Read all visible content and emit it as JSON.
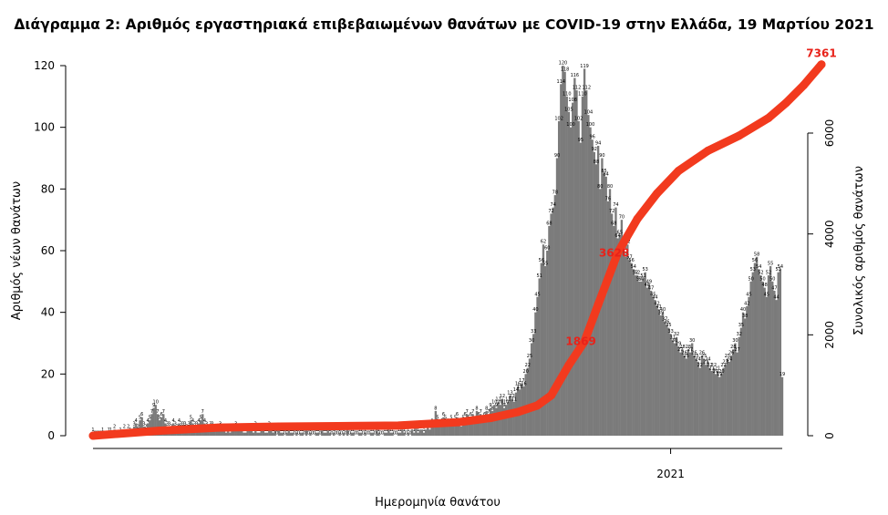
{
  "chart_data": {
    "type": "bar",
    "title": "Διάγραμμα 2: Αριθμός εργαστηριακά επιβεβαιωμένων θανάτων με COVID-19 στην Ελλάδα, 19 Μαρτίου 2021",
    "xlabel": "Ημερομηνία θανάτου",
    "ylabel": "Αριθμός νέων θανάτων",
    "y2label": "Συνολικός αριθμός θανάτων",
    "x_tick_labels": [
      "2021"
    ],
    "ylim": [
      0,
      120
    ],
    "y_ticks": [
      0,
      20,
      40,
      60,
      80,
      100,
      120
    ],
    "y2lim": [
      0,
      7361
    ],
    "y2_ticks": [
      0,
      2000,
      4000,
      6000
    ],
    "grid": false,
    "legend": "none",
    "colors": {
      "bars": "#7b7b7b",
      "cumulative_line": "#f23a1e",
      "cumulative_labels": "#e8221a"
    },
    "series": [
      {
        "name": "Αριθμός νέων θανάτων",
        "type": "bar",
        "x_start": "2020-03-12",
        "values": [
          1,
          0,
          0,
          0,
          0,
          1,
          0,
          0,
          1,
          1,
          0,
          2,
          0,
          0,
          1,
          0,
          2,
          0,
          2,
          1,
          0,
          3,
          4,
          2,
          5,
          6,
          3,
          2,
          4,
          5,
          7,
          9,
          10,
          7,
          5,
          6,
          7,
          4,
          3,
          3,
          2,
          4,
          3,
          2,
          4,
          3,
          3,
          3,
          2,
          3,
          5,
          4,
          3,
          3,
          4,
          5,
          7,
          4,
          3,
          2,
          3,
          3,
          2,
          2,
          2,
          3,
          2,
          2,
          1,
          2,
          1,
          2,
          2,
          3,
          2,
          2,
          2,
          1,
          1,
          2,
          2,
          2,
          1,
          3,
          1,
          1,
          2,
          2,
          1,
          1,
          3,
          2,
          1,
          2,
          0,
          2,
          1,
          1,
          0,
          1,
          2,
          1,
          1,
          0,
          1,
          0,
          1,
          1,
          0,
          2,
          0,
          1,
          0,
          0,
          1,
          1,
          0,
          2,
          1,
          1,
          2,
          1,
          0,
          1,
          0,
          0,
          1,
          0,
          1,
          0,
          2,
          0,
          1,
          1,
          0,
          0,
          1,
          1,
          0,
          1,
          0,
          0,
          1,
          1,
          0,
          2,
          1,
          0,
          0,
          1,
          1,
          2,
          1,
          1,
          0,
          0,
          1,
          1,
          2,
          1,
          0,
          1,
          0,
          2,
          1,
          3,
          1,
          2,
          2,
          1,
          2,
          3,
          2,
          4,
          3,
          8,
          5,
          3,
          4,
          6,
          5,
          4,
          3,
          5,
          4,
          5,
          6,
          4,
          3,
          5,
          6,
          7,
          5,
          6,
          7,
          4,
          8,
          6,
          7,
          5,
          6,
          8,
          7,
          9,
          8,
          10,
          9,
          11,
          10,
          12,
          9,
          10,
          11,
          13,
          12,
          11,
          14,
          16,
          15,
          17,
          16,
          20,
          22,
          25,
          30,
          33,
          40,
          45,
          51,
          56,
          62,
          55,
          60,
          68,
          72,
          74,
          78,
          90,
          102,
          114,
          120,
          118,
          110,
          105,
          100,
          108,
          116,
          112,
          102,
          95,
          110,
          119,
          112,
          104,
          100,
          96,
          92,
          88,
          94,
          80,
          90,
          85,
          84,
          76,
          80,
          72,
          68,
          74,
          64,
          65,
          70,
          60,
          58,
          62,
          57,
          56,
          54,
          52,
          52,
          50,
          50,
          51,
          53,
          48,
          49,
          47,
          45,
          44,
          42,
          41,
          39,
          40,
          37,
          36,
          35,
          33,
          31,
          30,
          32,
          29,
          27,
          28,
          26,
          25,
          28,
          27,
          30,
          26,
          25,
          24,
          22,
          26,
          25,
          23,
          24,
          22,
          21,
          22,
          20,
          21,
          19,
          20,
          22,
          23,
          25,
          24,
          26,
          28,
          30,
          27,
          32,
          35,
          40,
          38,
          42,
          45,
          50,
          53,
          56,
          58,
          54,
          52,
          50,
          48,
          45,
          52,
          55,
          50,
          47,
          44,
          53,
          54,
          19
        ],
        "data_labels": [
          "1",
          "0",
          "0",
          "0",
          "0",
          "1",
          "0",
          "0",
          "1",
          "1",
          "0",
          "2",
          "0",
          "0",
          "1",
          "0",
          "2",
          "0",
          "2",
          "1",
          "0",
          "3",
          "4",
          "2",
          "5",
          "6",
          "3",
          "2",
          "4",
          "5",
          "7",
          "9",
          "10",
          "7",
          "5",
          "6",
          "7",
          "4",
          "3",
          "3",
          "2",
          "4",
          "3",
          "2",
          "4",
          "3",
          "3",
          "3",
          "2",
          "3",
          "5",
          "4",
          "3",
          "3",
          "4",
          "5",
          "7",
          "4",
          "3",
          "2",
          "3",
          "3",
          "2",
          "2",
          "2",
          "3",
          "2",
          "2",
          "1",
          "2",
          "1",
          "2",
          "2",
          "3",
          "2",
          "2",
          "2",
          "1",
          "1",
          "2",
          "2",
          "2",
          "1",
          "3",
          "1",
          "1",
          "2",
          "2",
          "1",
          "1",
          "3",
          "2",
          "1",
          "2",
          "0",
          "2",
          "1",
          "1",
          "0",
          "1",
          "2",
          "1",
          "1",
          "0",
          "1",
          "0",
          "1",
          "1",
          "0",
          "2",
          "0",
          "1",
          "0",
          "0",
          "1",
          "1",
          "0",
          "2",
          "1",
          "1",
          "2",
          "1",
          "0",
          "1",
          "0",
          "0",
          "1",
          "0",
          "1",
          "0",
          "2",
          "0",
          "1",
          "1",
          "0",
          "0",
          "1",
          "1",
          "0",
          "1",
          "0",
          "0",
          "1",
          "1",
          "0",
          "2",
          "1",
          "0",
          "0",
          "1",
          "1",
          "2",
          "1",
          "1",
          "0",
          "0",
          "1",
          "1",
          "2",
          "1",
          "0",
          "1",
          "0",
          "2",
          "1",
          "3",
          "1",
          "2",
          "2",
          "1",
          "2",
          "3",
          "2",
          "4",
          "3",
          "8",
          "5",
          "3",
          "4",
          "6",
          "5",
          "4",
          "3",
          "5",
          "4",
          "5",
          "6",
          "4",
          "3",
          "5",
          "6",
          "7",
          "5",
          "6",
          "7",
          "4",
          "8",
          "6",
          "7",
          "5",
          "6",
          "8",
          "7",
          "9",
          "8",
          "10",
          "9",
          "11",
          "10",
          "12",
          "9",
          "10",
          "11",
          "13",
          "12",
          "11",
          "14",
          "16",
          "15",
          "17",
          "16",
          "20",
          "22",
          "25",
          "30",
          "33",
          "40",
          "45",
          "51",
          "56",
          "62",
          "55",
          "60",
          "68",
          "72",
          "74",
          "78",
          "90",
          "102",
          "114",
          "120",
          "118",
          "110",
          "105",
          "100",
          "108",
          "116",
          "112",
          "102",
          "95",
          "110",
          "119",
          "112",
          "104",
          "100",
          "96",
          "92",
          "88",
          "94",
          "80",
          "90",
          "85",
          "84",
          "76",
          "80",
          "72",
          "68",
          "74",
          "64",
          "65",
          "70",
          "60",
          "58",
          "62",
          "57",
          "56",
          "54",
          "52",
          "52",
          "50",
          "50",
          "51",
          "53",
          "48",
          "49",
          "47",
          "45",
          "44",
          "42",
          "41",
          "39",
          "40",
          "37",
          "36",
          "35",
          "33",
          "31",
          "30",
          "32",
          "29",
          "27",
          "28",
          "26",
          "25",
          "28",
          "27",
          "30",
          "26",
          "25",
          "24",
          "22",
          "26",
          "25",
          "23",
          "24",
          "22",
          "21",
          "22",
          "20",
          "21",
          "19",
          "20",
          "22",
          "23",
          "25",
          "24",
          "26",
          "28",
          "30",
          "27",
          "32",
          "35",
          "40",
          "38",
          "42",
          "45",
          "50",
          "53",
          "56",
          "58",
          "54",
          "52",
          "50",
          "48",
          "45",
          "52",
          "55",
          "50",
          "47",
          "44",
          "53",
          "54",
          "19"
        ]
      },
      {
        "name": "Συνολικός αριθμός θανάτων",
        "type": "line",
        "axis": "right",
        "x": [
          "2020-03-12",
          "2020-04-15",
          "2020-05-15",
          "2020-06-15",
          "2020-07-15",
          "2020-08-15",
          "2020-09-15",
          "2020-10-01",
          "2020-10-15",
          "2020-10-25",
          "2020-11-01",
          "2020-11-10",
          "2020-11-18",
          "2020-11-25",
          "2020-12-05",
          "2020-12-15",
          "2020-12-25",
          "2021-01-05",
          "2021-01-20",
          "2021-02-05",
          "2021-02-20",
          "2021-03-01",
          "2021-03-10",
          "2021-03-19"
        ],
        "y": [
          0,
          100,
          160,
          180,
          190,
          200,
          270,
          350,
          470,
          600,
          800,
          1400,
          1869,
          2600,
          3628,
          4300,
          4800,
          5250,
          5650,
          5950,
          6300,
          6600,
          6950,
          7361
        ],
        "annotations": [
          "1869",
          "3628",
          "7361"
        ]
      }
    ]
  }
}
